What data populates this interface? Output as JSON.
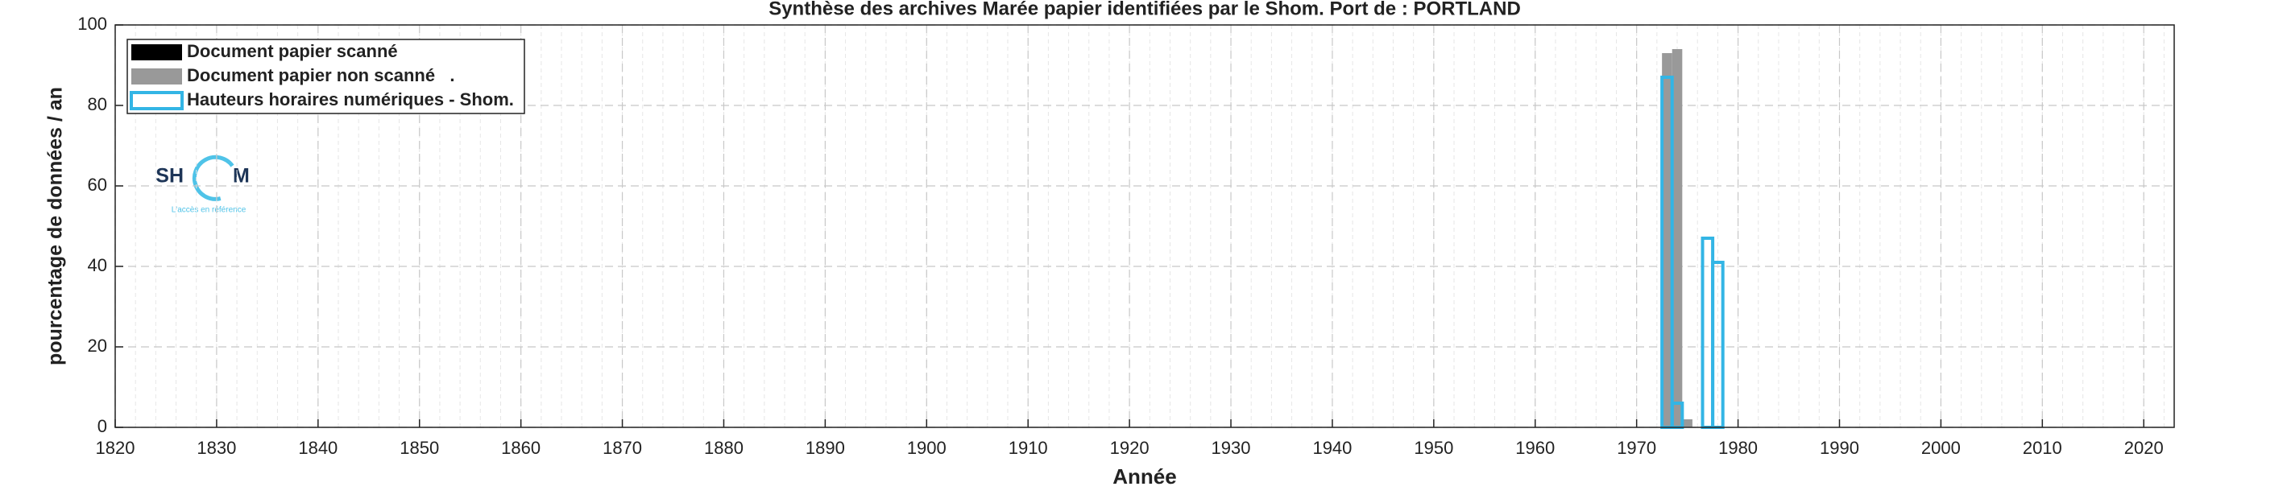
{
  "chart_data": {
    "type": "bar",
    "title": "Synthèse des archives Marée papier identifiées par le Shom. Port de : PORTLAND",
    "xlabel": "Année",
    "ylabel": "pourcentage de données / an",
    "xlim": [
      1820,
      2023
    ],
    "ylim": [
      0,
      100
    ],
    "xticks": [
      1820,
      1830,
      1840,
      1850,
      1860,
      1870,
      1880,
      1890,
      1900,
      1910,
      1920,
      1930,
      1940,
      1950,
      1960,
      1970,
      1980,
      1990,
      2000,
      2010,
      2020
    ],
    "yticks": [
      0,
      20,
      40,
      60,
      80,
      100
    ],
    "grid": true,
    "minor_xgrid_step": 2,
    "legend": "northwest",
    "series": [
      {
        "name": "Document papier scanné",
        "color": "#000000",
        "style": "filled",
        "x": [],
        "values": []
      },
      {
        "name": "Document papier non scanné   .",
        "color": "#999999",
        "style": "filled",
        "x": [
          1973,
          1974,
          1975
        ],
        "values": [
          93,
          94,
          2
        ]
      },
      {
        "name": "Hauteurs horaires numériques - Shom.",
        "color": "#33b5e5",
        "style": "outline",
        "x": [
          1973,
          1974,
          1977,
          1978
        ],
        "values": [
          87,
          6,
          47,
          41
        ]
      }
    ]
  },
  "logo": {
    "left": "SH",
    "right": "M",
    "tagline": "L'accès en référence"
  }
}
